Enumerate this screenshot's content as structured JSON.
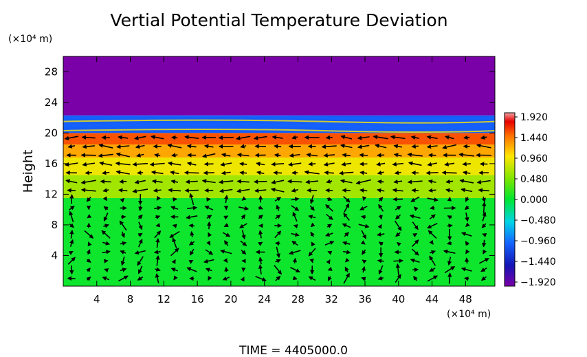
{
  "chart_data": {
    "type": "heatmap",
    "title": "Vertial Potential Temperature Deviation",
    "ylabel": "Height",
    "xlabel": "",
    "x_unit": "(×10⁴ m)",
    "y_unit": "(×10⁴ m)",
    "x_range": [
      0,
      51.5
    ],
    "y_range": [
      0,
      30
    ],
    "x_ticks": [
      4,
      8,
      12,
      16,
      20,
      24,
      28,
      32,
      36,
      40,
      44,
      48
    ],
    "y_ticks": [
      4,
      8,
      12,
      16,
      20,
      24,
      28
    ],
    "colorbar": {
      "min": -1.92,
      "max": 1.92,
      "ticks": [
        "1.920",
        "1.440",
        "0.960",
        "0.480",
        "0.000",
        "−0.480",
        "−0.960",
        "−1.440",
        "−1.920"
      ]
    },
    "layers": [
      {
        "y_from": 0,
        "y_to": 11.5,
        "value": 0.05
      },
      {
        "y_from": 11.5,
        "y_to": 14.5,
        "value": 0.6
      },
      {
        "y_from": 14.5,
        "y_to": 16.8,
        "value": 0.9
      },
      {
        "y_from": 16.8,
        "y_to": 18.5,
        "value": 1.2
      },
      {
        "y_from": 18.5,
        "y_to": 20.0,
        "value": 1.5
      },
      {
        "y_from": 20.0,
        "y_to": 22.3,
        "value": -1.0
      },
      {
        "y_from": 22.3,
        "y_to": 30,
        "value": -1.92
      }
    ],
    "grid": false,
    "vector_field": true,
    "footer": "TIME = 4405000.0"
  }
}
